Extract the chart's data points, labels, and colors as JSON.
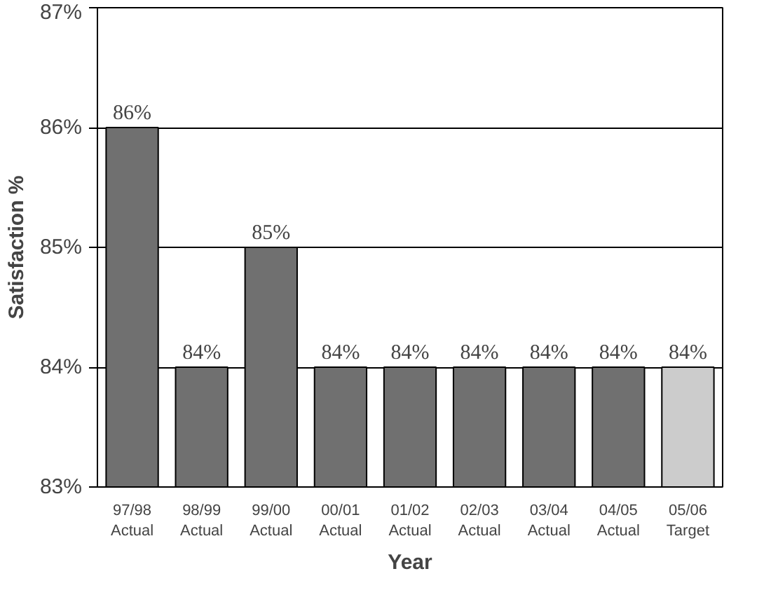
{
  "chart_data": {
    "type": "bar",
    "xlabel": "Year",
    "ylabel": "Satisfaction %",
    "categories": [
      "97/98\nActual",
      "98/99\nActual",
      "99/00\nActual",
      "00/01\nActual",
      "01/02\nActual",
      "02/03\nActual",
      "03/04\nActual",
      "04/05\nActual",
      "05/06\nTarget"
    ],
    "values": [
      86,
      84,
      85,
      84,
      84,
      84,
      84,
      84,
      84
    ],
    "colors": [
      "#707070",
      "#707070",
      "#707070",
      "#707070",
      "#707070",
      "#707070",
      "#707070",
      "#707070",
      "#cccccc"
    ],
    "value_labels": [
      "86%",
      "84%",
      "85%",
      "84%",
      "84%",
      "84%",
      "84%",
      "84%",
      "84%"
    ],
    "ylim": [
      83,
      87
    ],
    "yticks": [
      {
        "value": 83,
        "label": "83%"
      },
      {
        "value": 84,
        "label": "84%"
      },
      {
        "value": 85,
        "label": "85%"
      },
      {
        "value": 86,
        "label": "86%"
      },
      {
        "value": 87,
        "label": "87%"
      }
    ],
    "grid": "y"
  }
}
